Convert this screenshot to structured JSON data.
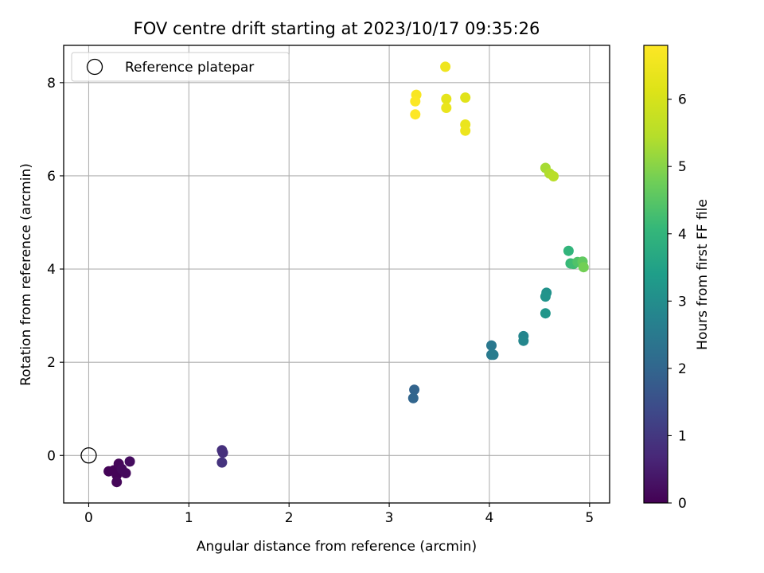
{
  "chart_data": {
    "type": "scatter",
    "title": "FOV centre drift starting at 2023/10/17 09:35:26",
    "xlabel": "Angular distance from reference (arcmin)",
    "ylabel": "Rotation from reference (arcmin)",
    "xlim": [
      -0.25,
      5.2
    ],
    "ylim": [
      -1.02,
      8.8
    ],
    "xticks": [
      0,
      1,
      2,
      3,
      4,
      5
    ],
    "yticks": [
      0,
      2,
      4,
      6,
      8
    ],
    "grid": true,
    "legend": {
      "position": "top-left",
      "entries": [
        "Reference platepar"
      ]
    },
    "reference_point": {
      "x": 0,
      "y": 0
    },
    "colorbar": {
      "label": "Hours from first FF file",
      "range": [
        0,
        6.8
      ],
      "ticks": [
        0,
        1,
        2,
        3,
        4,
        5,
        6
      ],
      "colormap": "viridis"
    },
    "points": [
      {
        "x": 0.2,
        "y": -0.34,
        "c": 0.05
      },
      {
        "x": 0.25,
        "y": -0.32,
        "c": 0.05
      },
      {
        "x": 0.28,
        "y": -0.42,
        "c": 0.05
      },
      {
        "x": 0.28,
        "y": -0.57,
        "c": 0.1
      },
      {
        "x": 0.3,
        "y": -0.18,
        "c": 0.1
      },
      {
        "x": 0.33,
        "y": -0.29,
        "c": 0.15
      },
      {
        "x": 0.37,
        "y": -0.38,
        "c": 0.15
      },
      {
        "x": 0.41,
        "y": -0.13,
        "c": 0.2
      },
      {
        "x": 1.33,
        "y": 0.11,
        "c": 0.85
      },
      {
        "x": 1.34,
        "y": 0.06,
        "c": 0.85
      },
      {
        "x": 1.33,
        "y": -0.15,
        "c": 0.9
      },
      {
        "x": 3.25,
        "y": 1.41,
        "c": 1.95
      },
      {
        "x": 3.24,
        "y": 1.23,
        "c": 2.0
      },
      {
        "x": 4.02,
        "y": 2.36,
        "c": 2.45
      },
      {
        "x": 4.02,
        "y": 2.16,
        "c": 2.5
      },
      {
        "x": 4.04,
        "y": 2.16,
        "c": 2.55
      },
      {
        "x": 4.34,
        "y": 2.56,
        "c": 2.8
      },
      {
        "x": 4.34,
        "y": 2.46,
        "c": 2.85
      },
      {
        "x": 4.57,
        "y": 3.49,
        "c": 3.1
      },
      {
        "x": 4.56,
        "y": 3.41,
        "c": 3.15
      },
      {
        "x": 4.56,
        "y": 3.05,
        "c": 3.2
      },
      {
        "x": 4.79,
        "y": 4.39,
        "c": 4.0
      },
      {
        "x": 4.81,
        "y": 4.12,
        "c": 4.1
      },
      {
        "x": 4.84,
        "y": 4.11,
        "c": 4.2
      },
      {
        "x": 4.88,
        "y": 4.15,
        "c": 4.4
      },
      {
        "x": 4.93,
        "y": 4.16,
        "c": 4.6
      },
      {
        "x": 4.94,
        "y": 4.04,
        "c": 4.8
      },
      {
        "x": 4.56,
        "y": 6.17,
        "c": 5.3
      },
      {
        "x": 4.6,
        "y": 6.05,
        "c": 5.4
      },
      {
        "x": 4.64,
        "y": 5.99,
        "c": 5.5
      },
      {
        "x": 3.76,
        "y": 7.68,
        "c": 6.2
      },
      {
        "x": 3.76,
        "y": 7.1,
        "c": 6.4
      },
      {
        "x": 3.76,
        "y": 6.97,
        "c": 6.45
      },
      {
        "x": 3.57,
        "y": 7.65,
        "c": 6.3
      },
      {
        "x": 3.57,
        "y": 7.46,
        "c": 6.4
      },
      {
        "x": 3.56,
        "y": 8.34,
        "c": 6.5
      },
      {
        "x": 3.27,
        "y": 7.74,
        "c": 6.7
      },
      {
        "x": 3.26,
        "y": 7.6,
        "c": 6.75
      },
      {
        "x": 3.26,
        "y": 7.32,
        "c": 6.8
      }
    ]
  }
}
